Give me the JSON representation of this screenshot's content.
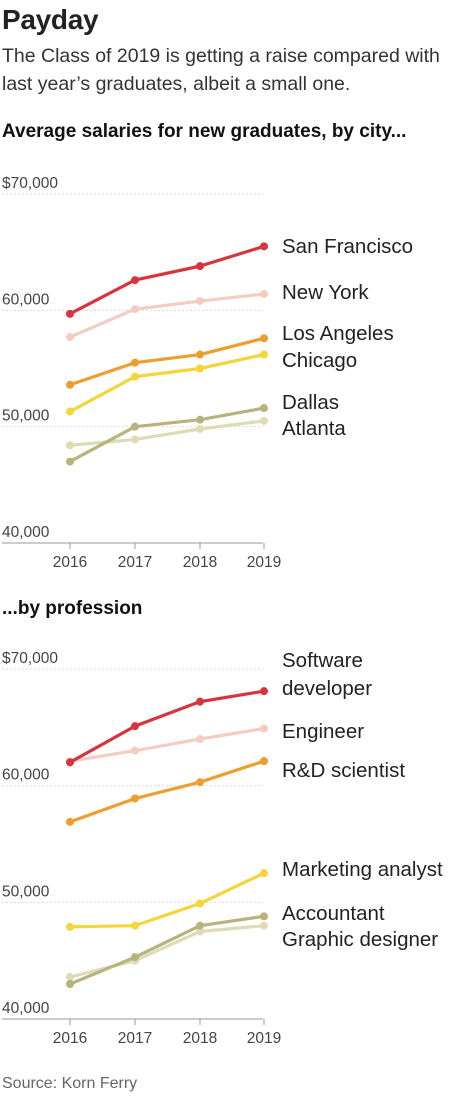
{
  "header": {
    "title": "Payday",
    "subtitle": "The Class of 2019 is getting a raise compared with last year’s graduates, albeit a small one."
  },
  "footer": {
    "source": "Source: Korn Ferry"
  },
  "chart_data": [
    {
      "type": "line",
      "title": "Average salaries for new graduates, by city...",
      "xlabel": "",
      "ylabel": "",
      "x": [
        2016,
        2017,
        2018,
        2019
      ],
      "x_tick_labels": [
        "2016",
        "2017",
        "2018",
        "2019"
      ],
      "ylim": [
        40000,
        70000
      ],
      "y_ticks": [
        40000,
        50000,
        60000,
        70000
      ],
      "y_tick_labels": [
        "40,000",
        "50,000",
        "60,000",
        "$70,000"
      ],
      "grid": "horizontal",
      "legend": "direct labels at right",
      "series": [
        {
          "name": "San Francisco",
          "color": "#d9343e",
          "values": [
            59700,
            62600,
            63800,
            65500
          ]
        },
        {
          "name": "New York",
          "color": "#f5cdc0",
          "values": [
            57700,
            60100,
            60800,
            61400
          ]
        },
        {
          "name": "Los Angeles",
          "color": "#ee9e2d",
          "values": [
            53600,
            55500,
            56200,
            57600
          ]
        },
        {
          "name": "Chicago",
          "color": "#f3d53c",
          "values": [
            51300,
            54300,
            55000,
            56200
          ]
        },
        {
          "name": "Dallas",
          "color": "#b8b37c",
          "values": [
            47000,
            50000,
            50600,
            51600
          ]
        },
        {
          "name": "Atlanta",
          "color": "#dddcb6",
          "values": [
            48400,
            48900,
            49800,
            50500
          ]
        }
      ]
    },
    {
      "type": "line",
      "title": "...by profession",
      "xlabel": "",
      "ylabel": "",
      "x": [
        2016,
        2017,
        2018,
        2019
      ],
      "x_tick_labels": [
        "2016",
        "2017",
        "2018",
        "2019"
      ],
      "ylim": [
        40000,
        70000
      ],
      "y_ticks": [
        40000,
        50000,
        60000,
        70000
      ],
      "y_tick_labels": [
        "40,000",
        "50,000",
        "60,000",
        "$70,000"
      ],
      "grid": "horizontal",
      "legend": "direct labels at right",
      "series": [
        {
          "name": "Software developer",
          "label_lines": [
            "Software",
            "developer"
          ],
          "color": "#d9343e",
          "values": [
            62000,
            65100,
            67200,
            68100
          ]
        },
        {
          "name": "Engineer",
          "label_lines": [
            "Engineer"
          ],
          "color": "#f5cdc0",
          "values": [
            62100,
            63000,
            64000,
            64900
          ]
        },
        {
          "name": "R&D scientist",
          "label_lines": [
            "R&D scientist"
          ],
          "color": "#ee9e2d",
          "values": [
            56900,
            58900,
            60300,
            62100
          ]
        },
        {
          "name": "Marketing analyst",
          "label_lines": [
            "Marketing analyst"
          ],
          "color": "#f3d53c",
          "values": [
            47900,
            48000,
            49900,
            52500
          ]
        },
        {
          "name": "Accountant",
          "label_lines": [
            "Accountant"
          ],
          "color": "#b8b37c",
          "values": [
            43000,
            45300,
            48000,
            48800
          ]
        },
        {
          "name": "Graphic designer",
          "label_lines": [
            "Graphic designer"
          ],
          "color": "#dddcb6",
          "values": [
            43600,
            45000,
            47500,
            48000
          ]
        }
      ]
    }
  ]
}
